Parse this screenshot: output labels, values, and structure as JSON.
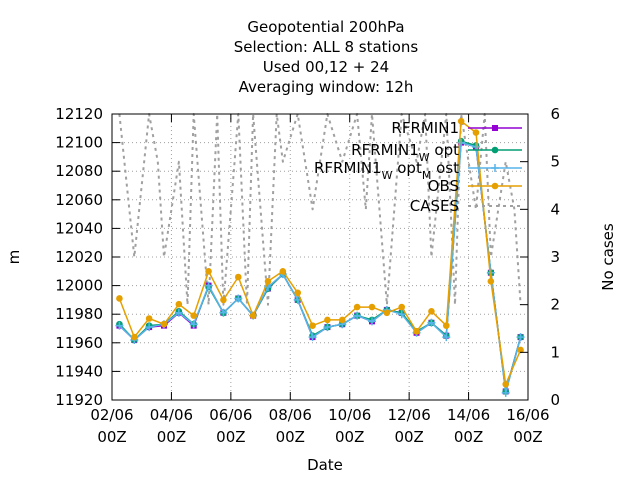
{
  "chart_data": {
    "type": "line",
    "title_lines": [
      "Geopotential 200hPa",
      "Selection: ALL      8 stations",
      "Used  00,12  + 24",
      "Averaging window: 12h"
    ],
    "xlabel": "Date",
    "ylabel": "m",
    "y2label": "No cases",
    "xlim": [
      "2022-06-02 00:00",
      "2022-06-16 00:00"
    ],
    "ylim": [
      11920,
      12120
    ],
    "y2lim": [
      0,
      6
    ],
    "yticks": [
      "11920",
      "11940",
      "11960",
      "11980",
      "12000",
      "12020",
      "12040",
      "12060",
      "12080",
      "12100",
      "12120"
    ],
    "y2ticks": [
      "0",
      "1",
      "2",
      "3",
      "4",
      "5",
      "6"
    ],
    "xticks": [
      {
        "x": "2022-06-02 00:00",
        "line1": "02/06",
        "line2": "00Z"
      },
      {
        "x": "2022-06-04 00:00",
        "line1": "04/06",
        "line2": "00Z"
      },
      {
        "x": "2022-06-06 00:00",
        "line1": "06/06",
        "line2": "00Z"
      },
      {
        "x": "2022-06-08 00:00",
        "line1": "08/06",
        "line2": "00Z"
      },
      {
        "x": "2022-06-10 00:00",
        "line1": "10/06",
        "line2": "00Z"
      },
      {
        "x": "2022-06-12 00:00",
        "line1": "12/06",
        "line2": "00Z"
      },
      {
        "x": "2022-06-14 00:00",
        "line1": "14/06",
        "line2": "00Z"
      },
      {
        "x": "2022-06-16 00:00",
        "line1": "16/06",
        "line2": "00Z"
      }
    ],
    "grid": true,
    "legend_position": "top-right",
    "x": [
      "2022-06-02 06:00",
      "2022-06-02 18:00",
      "2022-06-03 06:00",
      "2022-06-03 18:00",
      "2022-06-04 06:00",
      "2022-06-04 18:00",
      "2022-06-05 06:00",
      "2022-06-05 18:00",
      "2022-06-06 06:00",
      "2022-06-06 18:00",
      "2022-06-07 06:00",
      "2022-06-07 18:00",
      "2022-06-08 06:00",
      "2022-06-08 18:00",
      "2022-06-09 06:00",
      "2022-06-09 18:00",
      "2022-06-10 06:00",
      "2022-06-10 18:00",
      "2022-06-11 06:00",
      "2022-06-11 18:00",
      "2022-06-12 06:00",
      "2022-06-12 18:00",
      "2022-06-13 06:00",
      "2022-06-13 18:00",
      "2022-06-14 06:00",
      "2022-06-14 18:00",
      "2022-06-15 06:00",
      "2022-06-15 18:00"
    ],
    "series": [
      {
        "name": "RFRMIN1",
        "label": "RFRMIN1",
        "sub": "",
        "label2": "",
        "sub2": "",
        "label3": "",
        "color": "#9400d3",
        "marker": "square",
        "dash": "",
        "axis": "y",
        "values": [
          11972,
          11962,
          11971,
          11972,
          11981,
          11972,
          12000,
          11981,
          11991,
          11979,
          11998,
          12008,
          11990,
          11964,
          11971,
          11973,
          11979,
          11975,
          11983,
          11981,
          11967,
          11974,
          11965,
          12100,
          12097,
          12009,
          11926,
          11964
        ]
      },
      {
        "name": "RFRMIN1 W opt",
        "label": "RFRMIN1",
        "sub": "W",
        "label2": " opt",
        "sub2": "",
        "label3": "",
        "color": "#009e73",
        "marker": "circle",
        "dash": "",
        "axis": "y",
        "values": [
          11973,
          11962,
          11972,
          11973,
          11982,
          11973,
          11999,
          11981,
          11991,
          11979,
          11998,
          12008,
          11990,
          11965,
          11971,
          11973,
          11979,
          11976,
          11983,
          11981,
          11968,
          11974,
          11965,
          12101,
          12098,
          12009,
          11926,
          11964
        ]
      },
      {
        "name": "RFRMIN1 W opt M ost",
        "label": "RFRMIN1",
        "sub": "W",
        "label2": " opt",
        "sub2": "M",
        "label3": " ost",
        "color": "#56b4e9",
        "marker": "plus",
        "dash": "",
        "axis": "y",
        "values": [
          11972,
          11962,
          11971,
          11973,
          11981,
          11973,
          12000,
          11981,
          11991,
          11979,
          11999,
          12008,
          11990,
          11964,
          11971,
          11973,
          11979,
          11975,
          11983,
          11980,
          11967,
          11974,
          11964,
          12100,
          12097,
          12009,
          11925,
          11964
        ]
      },
      {
        "name": "OBS",
        "label": "OBS",
        "sub": "",
        "label2": "",
        "sub2": "",
        "label3": "",
        "color": "#e69f00",
        "marker": "circle",
        "dash": "",
        "axis": "y",
        "values": [
          11991,
          11964,
          11977,
          11973,
          11987,
          11979,
          12010,
          11990,
          12006,
          11979,
          12003,
          12010,
          11995,
          11972,
          11976,
          11976,
          11985,
          11985,
          11981,
          11985,
          11968,
          11982,
          11972,
          12115,
          12107,
          12003,
          11931,
          11955
        ]
      },
      {
        "name": "CASES",
        "label": "CASES",
        "sub": "",
        "label2": "",
        "sub2": "",
        "label3": "",
        "color": "#a0a0a0",
        "marker": "none",
        "dash": "3,4",
        "axis": "y2",
        "x": [
          "2022-06-02 06:00",
          "2022-06-02 18:00",
          "2022-06-03 06:00",
          "2022-06-03 13:00",
          "2022-06-03 18:00",
          "2022-06-04 06:00",
          "2022-06-04 13:00",
          "2022-06-04 18:00",
          "2022-06-05 06:00",
          "2022-06-05 13:00",
          "2022-06-05 18:00",
          "2022-06-06 06:00",
          "2022-06-06 13:00",
          "2022-06-06 18:00",
          "2022-06-07 06:00",
          "2022-06-07 13:00",
          "2022-06-07 18:00",
          "2022-06-08 06:00",
          "2022-06-08 18:00",
          "2022-06-09 06:00",
          "2022-06-09 18:00",
          "2022-06-10 06:00",
          "2022-06-10 13:00",
          "2022-06-10 18:00",
          "2022-06-11 06:00",
          "2022-06-11 18:00",
          "2022-06-12 06:00",
          "2022-06-12 13:00",
          "2022-06-12 18:00",
          "2022-06-13 06:00",
          "2022-06-13 13:00",
          "2022-06-13 18:00",
          "2022-06-14 06:00",
          "2022-06-14 13:00",
          "2022-06-14 18:00",
          "2022-06-15 06:00",
          "2022-06-15 13:00",
          "2022-06-15 18:00"
        ],
        "values": [
          6,
          3,
          6,
          5,
          3,
          5,
          2,
          6,
          2,
          6,
          2,
          6,
          2,
          6,
          2,
          6,
          5,
          6,
          4,
          6,
          5,
          6,
          4,
          6,
          2,
          6,
          5,
          6,
          3,
          6,
          2,
          6,
          4,
          6,
          3,
          5,
          4,
          2
        ]
      }
    ]
  }
}
